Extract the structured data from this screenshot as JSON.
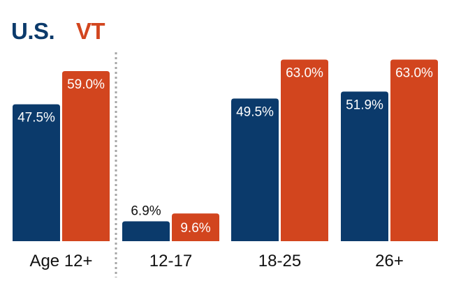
{
  "colors": {
    "us": "#0b3a6b",
    "vt": "#d2451e",
    "divider": "#a6a6a6"
  },
  "chart_data": {
    "type": "bar",
    "categories": [
      "Age 12+",
      "12-17",
      "18-25",
      "26+"
    ],
    "series": [
      {
        "name": "U.S.",
        "values": [
          47.5,
          6.9,
          49.5,
          51.9
        ],
        "labels": [
          "47.5%",
          "6.9%",
          "49.5%",
          "51.9%"
        ]
      },
      {
        "name": "VT",
        "values": [
          59.0,
          9.6,
          63.0,
          63.0
        ],
        "labels": [
          "59.0%",
          "9.6%",
          "63.0%",
          "63.0%"
        ]
      }
    ],
    "ylim": [
      0,
      65
    ],
    "legend": "top-left",
    "grid": false
  }
}
